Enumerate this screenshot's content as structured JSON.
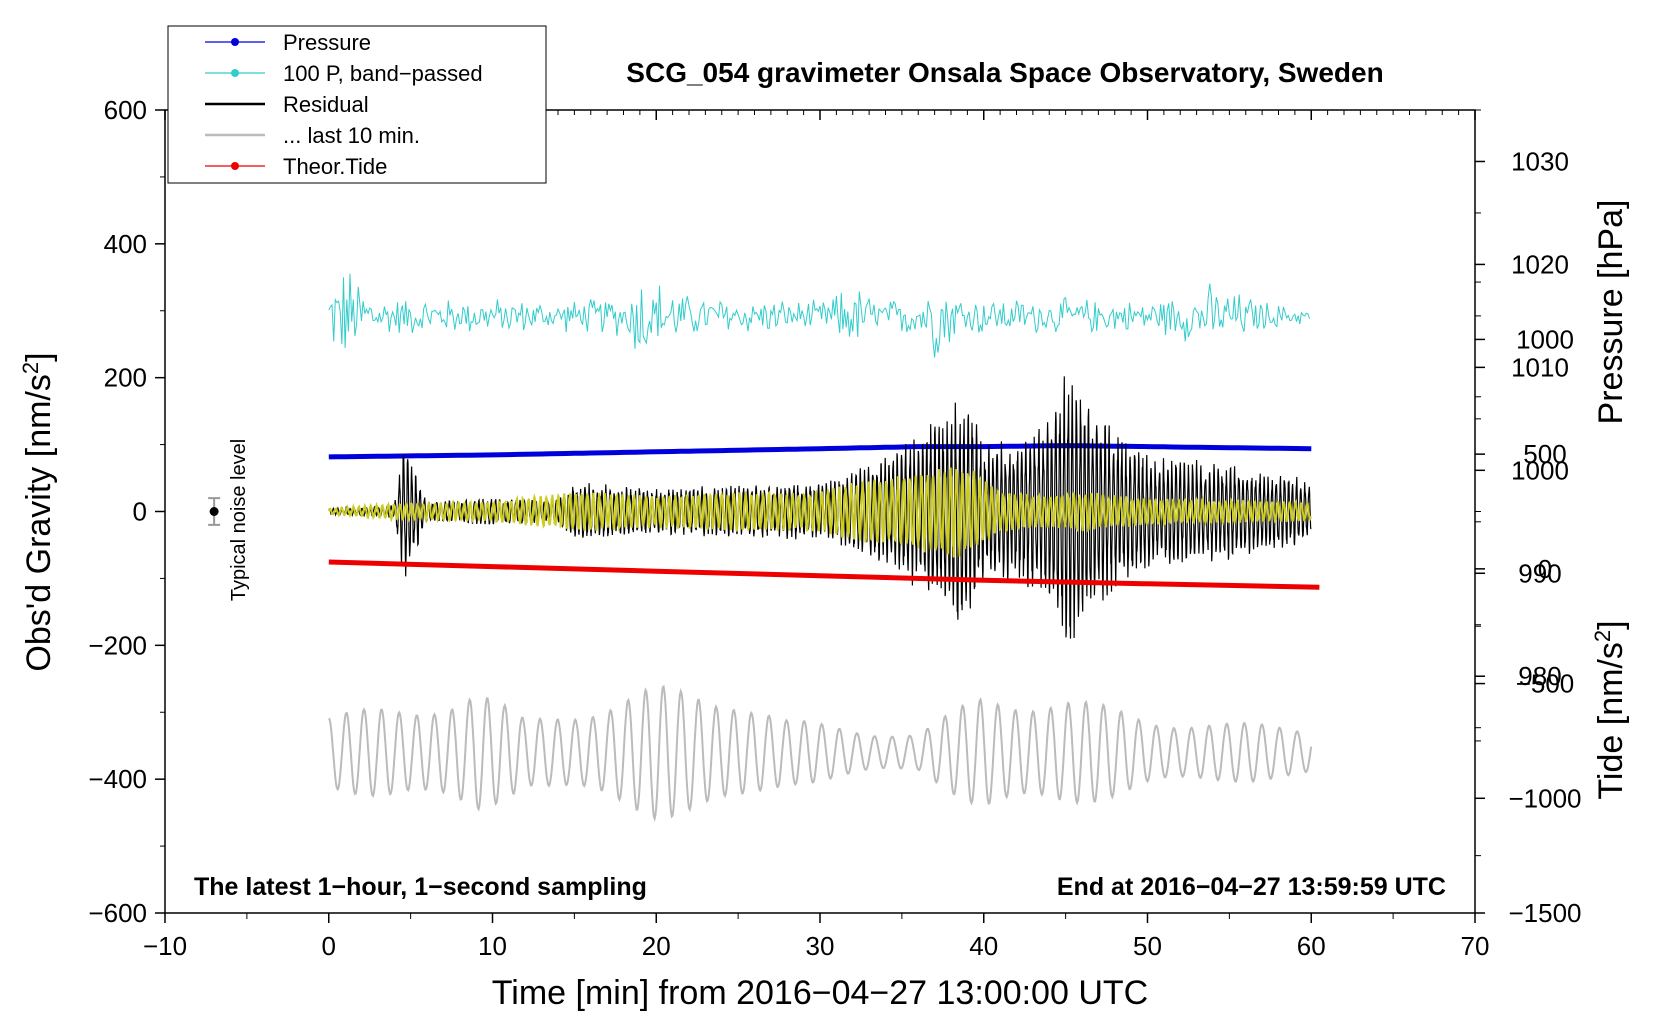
{
  "chart_data": {
    "type": "line",
    "title": "SCG_054 gravimeter Onsala Space Observatory, Sweden",
    "xlabel": "Time [min] from 2016−04−27 13:00:00 UTC",
    "ylabel_left_pre": "Obs'd Gravity [nm/s",
    "ylabel_left_sup": "2",
    "ylabel_left_post": "]",
    "ylabel_pressure": "Pressure [hPa]",
    "ylabel_tide_pre": "Tide [nm/s",
    "ylabel_tide_sup": "2",
    "ylabel_tide_post": "]",
    "xlim": [
      -10,
      70
    ],
    "ylim": [
      -600,
      600
    ],
    "x_ticks": [
      -10,
      0,
      10,
      20,
      30,
      40,
      50,
      60,
      70
    ],
    "x_tick_labels": [
      "−10",
      "0",
      "10",
      "20",
      "30",
      "40",
      "50",
      "60",
      "70"
    ],
    "y_ticks": [
      -600,
      -400,
      -200,
      0,
      200,
      400,
      600
    ],
    "y_tick_labels": [
      "−600",
      "−400",
      "−200",
      "0",
      "200",
      "400",
      "600"
    ],
    "pressure_axis": {
      "range": [
        957,
        1035
      ],
      "ticks": [
        980,
        990,
        1000,
        1010,
        1020,
        1030
      ],
      "tick_labels": [
        "980",
        "990",
        "1000",
        "1010",
        "1020",
        "1030"
      ]
    },
    "tide_axis": {
      "range": [
        -1500,
        2000
      ],
      "ticks": [
        -1500,
        -1000,
        -500,
        0,
        500,
        1000
      ],
      "tick_labels": [
        "−1500",
        "−1000",
        "−500",
        "0",
        "500",
        "1000"
      ]
    },
    "legend": {
      "placement": "top-left",
      "entries": [
        {
          "label": "Pressure",
          "color": "#0000dd",
          "marker": true
        },
        {
          "label": "100 P, band−passed",
          "color": "#33cccc",
          "marker": true
        },
        {
          "label": "Residual",
          "color": "#000000",
          "marker": false
        },
        {
          "label": "... last 10 min.",
          "color": "#bbbbbb",
          "marker": false
        },
        {
          "label": "Theor.Tide",
          "color": "#ee0000",
          "marker": true
        }
      ]
    },
    "series": [
      {
        "name": "Pressure",
        "color": "#0000dd",
        "axis": "pressure",
        "x": [
          0,
          10,
          20,
          30,
          36,
          40,
          45,
          50,
          55,
          60
        ],
        "values": [
          1001.3,
          1001.5,
          1001.8,
          1002.1,
          1002.3,
          1002.3,
          1002.4,
          1002.3,
          1002.2,
          1002.1
        ]
      },
      {
        "name": "100 P, band−passed",
        "color": "#33cccc",
        "axis": "left",
        "baseline": 292,
        "envelope_x": [
          0,
          1,
          3,
          6,
          10,
          14,
          18,
          19,
          22,
          26,
          30,
          32,
          34,
          36,
          37,
          39,
          42,
          46,
          50,
          54,
          55,
          58,
          60
        ],
        "envelope": [
          50,
          90,
          35,
          30,
          30,
          25,
          35,
          80,
          35,
          30,
          25,
          55,
          25,
          40,
          70,
          35,
          30,
          30,
          25,
          55,
          45,
          20,
          12
        ]
      },
      {
        "name": "Residual",
        "color": "#000000",
        "axis": "left",
        "envelope_x": [
          0,
          2,
          4,
          4.6,
          6,
          10,
          14,
          15,
          20,
          25,
          30,
          33,
          35,
          37,
          38,
          39,
          40,
          42,
          44,
          45,
          46,
          48,
          50,
          55,
          60
        ],
        "envelope": [
          5,
          6,
          10,
          110,
          15,
          20,
          18,
          45,
          35,
          40,
          45,
          70,
          100,
          140,
          170,
          175,
          100,
          110,
          140,
          220,
          180,
          120,
          85,
          75,
          50
        ]
      },
      {
        "name": "Band-passed residual",
        "color": "#cccc22",
        "axis": "left",
        "envelope_x": [
          0,
          4,
          10,
          15,
          20,
          25,
          30,
          32,
          34,
          36,
          38,
          39,
          41,
          44,
          46,
          50,
          60
        ],
        "envelope": [
          4,
          12,
          15,
          30,
          25,
          30,
          30,
          45,
          50,
          60,
          70,
          70,
          30,
          25,
          30,
          20,
          15
        ]
      },
      {
        "name": "... last 10 min.",
        "color": "#bbbbbb",
        "axis": "left",
        "baseline": -360,
        "envelope_x": [
          0,
          5,
          9,
          12,
          17,
          20,
          25,
          28,
          33,
          36,
          40,
          45,
          50,
          55,
          60
        ],
        "envelope": [
          60,
          70,
          100,
          50,
          80,
          100,
          90,
          50,
          35,
          30,
          90,
          85,
          55,
          45,
          40
        ]
      },
      {
        "name": "Theor.Tide",
        "color": "#ee0000",
        "axis": "tide",
        "x": [
          0,
          10,
          20,
          30,
          40,
          50,
          60.5
        ],
        "values": [
          30,
          10,
          -10,
          -30,
          -50,
          -65,
          -80
        ]
      }
    ],
    "noise_level": {
      "label": "Typical noise level",
      "x": -7,
      "value": 0,
      "error": 20
    },
    "annotations": {
      "bottom_left": "The latest 1−hour, 1−second sampling",
      "bottom_right": "End at 2016−04−27 13:59:59 UTC"
    }
  }
}
